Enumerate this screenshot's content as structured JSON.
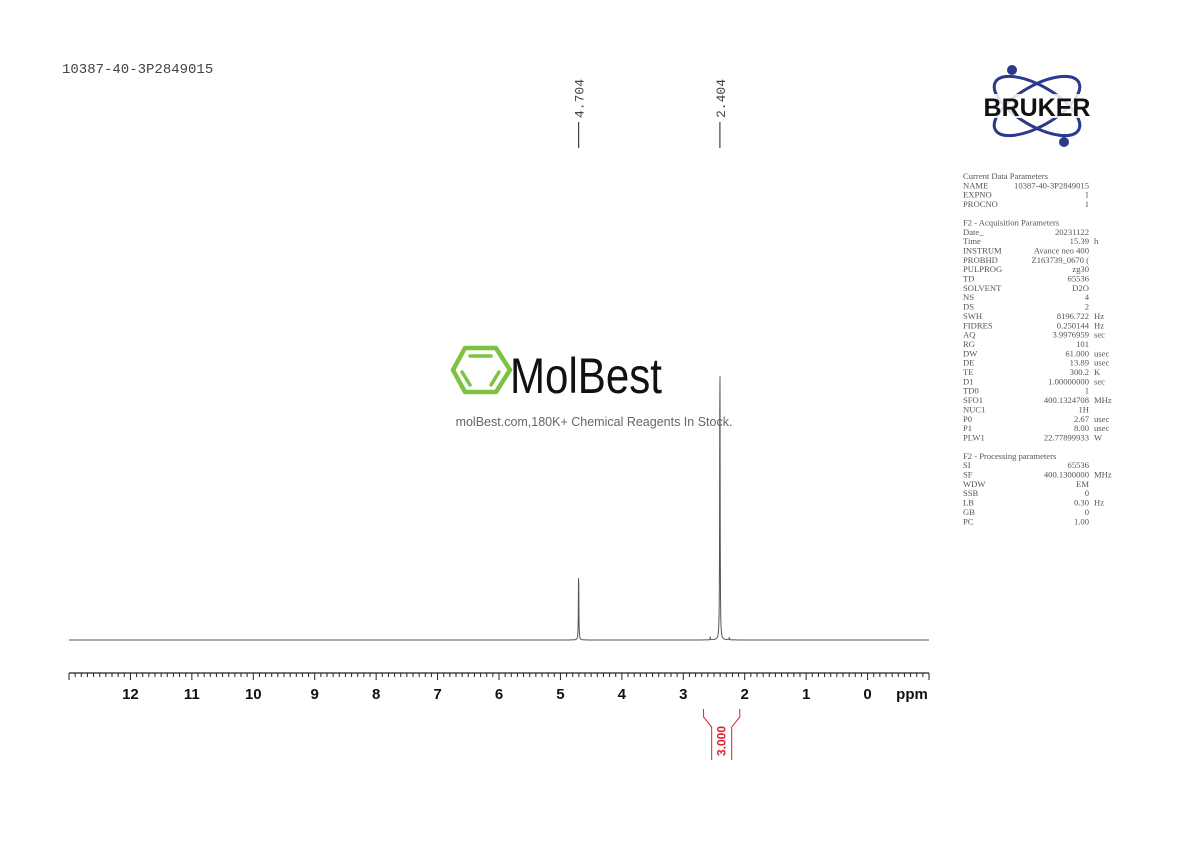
{
  "sample_title": "10387-40-3P2849015",
  "watermark": {
    "brand": "MolBest",
    "tagline": "molBest.com,180K+ Chemical Reagents In Stock.",
    "color": "#7dc242"
  },
  "logo": {
    "text": "BRUKER",
    "color": "#2b3a8c"
  },
  "parameters": {
    "current": {
      "heading": "Current Data Parameters",
      "rows": [
        [
          "NAME",
          "10387-40-3P2849015",
          ""
        ],
        [
          "EXPNO",
          "1",
          ""
        ],
        [
          "PROCNO",
          "1",
          ""
        ]
      ]
    },
    "acquisition": {
      "heading": "F2 - Acquisition Parameters",
      "rows": [
        [
          "Date_",
          "20231122",
          ""
        ],
        [
          "Time",
          "15.39",
          "h"
        ],
        [
          "INSTRUM",
          "Avance neo 400",
          ""
        ],
        [
          "PROBHD",
          "Z163739_0670 (",
          ""
        ],
        [
          "PULPROG",
          "zg30",
          ""
        ],
        [
          "TD",
          "65536",
          ""
        ],
        [
          "SOLVENT",
          "D2O",
          ""
        ],
        [
          "NS",
          "4",
          ""
        ],
        [
          "DS",
          "2",
          ""
        ],
        [
          "SWH",
          "8196.722",
          "Hz"
        ],
        [
          "FIDRES",
          "0.250144",
          "Hz"
        ],
        [
          "AQ",
          "3.9976959",
          "sec"
        ],
        [
          "RG",
          "101",
          ""
        ],
        [
          "DW",
          "61.000",
          "usec"
        ],
        [
          "DE",
          "13.89",
          "usec"
        ],
        [
          "TE",
          "300.2",
          "K"
        ],
        [
          "D1",
          "1.00000000",
          "sec"
        ],
        [
          "TD0",
          "1",
          ""
        ],
        [
          "SFO1",
          "400.1324708",
          "MHz"
        ],
        [
          "NUC1",
          "1H",
          ""
        ],
        [
          "P0",
          "2.67",
          "usec"
        ],
        [
          "P1",
          "8.00",
          "usec"
        ],
        [
          "PLW1",
          "22.77899933",
          "W"
        ]
      ]
    },
    "processing": {
      "heading": "F2 - Processing parameters",
      "rows": [
        [
          "SI",
          "65536",
          ""
        ],
        [
          "SF",
          "400.1300000",
          "MHz"
        ],
        [
          "WDW",
          "EM",
          ""
        ],
        [
          "SSB",
          "0",
          ""
        ],
        [
          "LB",
          "0.30",
          "Hz"
        ],
        [
          "GB",
          "0",
          ""
        ],
        [
          "PC",
          "1.00",
          ""
        ]
      ]
    }
  },
  "chart_data": {
    "type": "line",
    "xlabel": "ppm",
    "xlim": [
      13,
      -1
    ],
    "x_reversed": true,
    "grid": false,
    "tick_labels": [
      "12",
      "11",
      "10",
      "9",
      "8",
      "7",
      "6",
      "5",
      "4",
      "3",
      "2",
      "1",
      "0"
    ],
    "peaks": [
      {
        "ppm": 4.704,
        "label": "4.704",
        "relative_intensity": 0.24
      },
      {
        "ppm": 2.404,
        "label": "2.404",
        "relative_intensity": 1.0
      },
      {
        "ppm": 2.56,
        "relative_intensity": 0.008
      },
      {
        "ppm": 2.25,
        "relative_intensity": 0.008
      }
    ],
    "integrals": [
      {
        "from": 2.67,
        "to": 2.08,
        "value": "3.000"
      }
    ],
    "line_color": "#555555",
    "integral_color": "#e0202a"
  }
}
